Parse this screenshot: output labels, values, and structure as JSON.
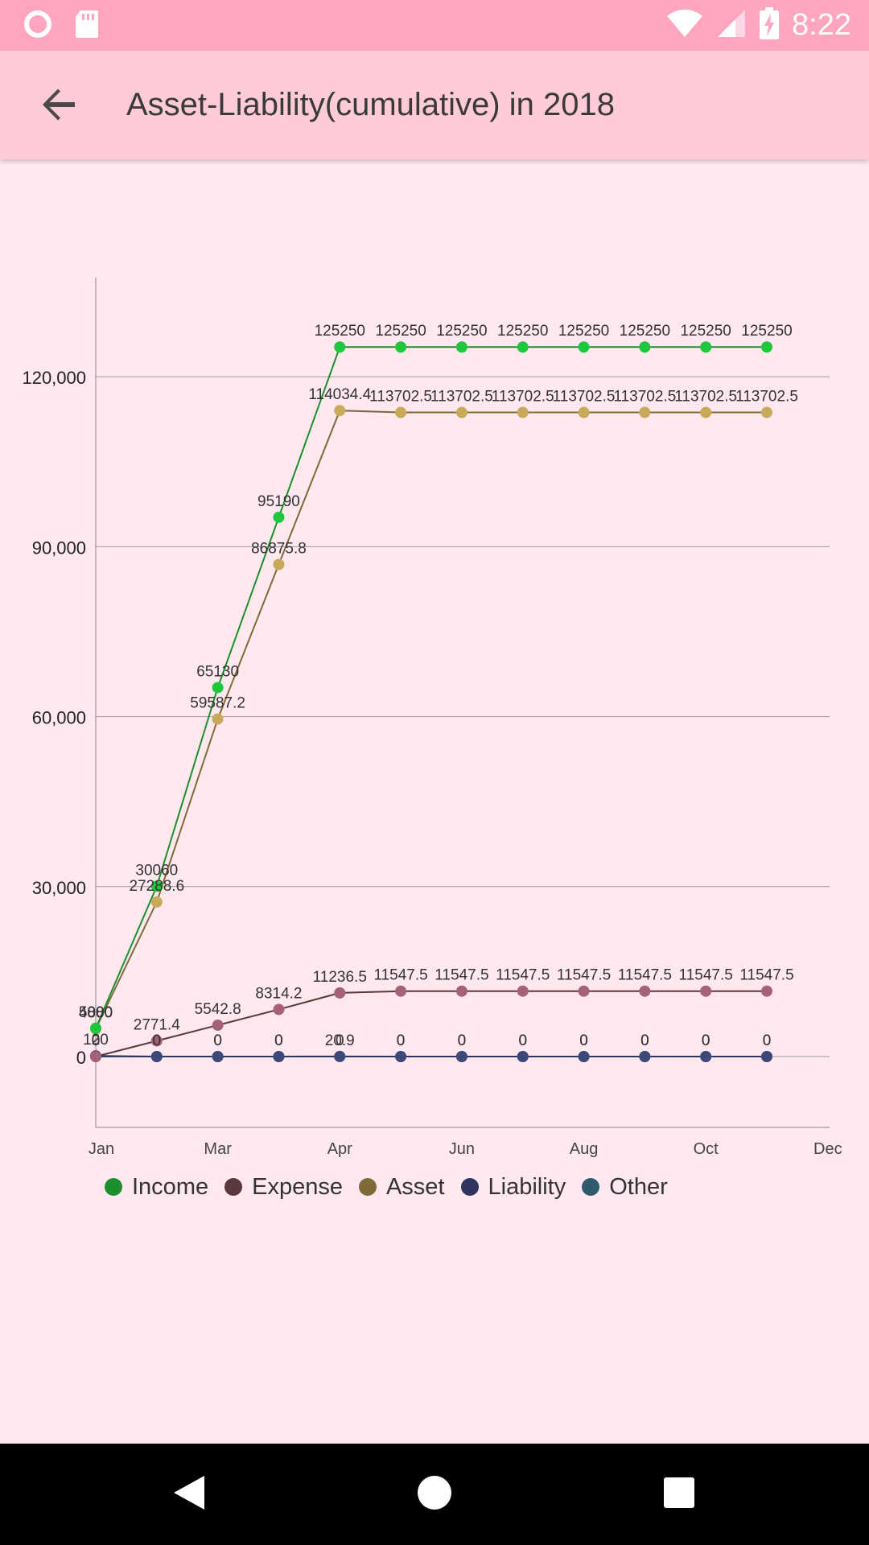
{
  "status_bar": {
    "time": "8:22",
    "icons": [
      "circle-notification-icon",
      "sd-card-icon",
      "wifi-icon",
      "signal-icon",
      "battery-charging-icon"
    ]
  },
  "app_bar": {
    "title": "Asset-Liability(cumulative) in 2018",
    "back_icon": "arrow-back-icon"
  },
  "chart_data": {
    "type": "line",
    "title": "",
    "xlabel": "",
    "ylabel": "",
    "x_range": [
      0,
      11
    ],
    "ylim": [
      -12500,
      137500
    ],
    "x_tick_positions": [
      0,
      2,
      4,
      6,
      8,
      10,
      12
    ],
    "x_tick_labels": [
      "Jan",
      "Mar",
      "Apr",
      "Jun",
      "Aug",
      "Oct",
      "Dec"
    ],
    "y_ticks": [
      0,
      30000,
      60000,
      90000,
      120000
    ],
    "y_tick_labels": [
      "0",
      "30,000",
      "60,000",
      "90,000",
      "120,000"
    ],
    "grid": "horizontal",
    "legend_position": "bottom-left",
    "series": [
      {
        "name": "Income",
        "color": "#1ec83c",
        "line_color": "#1b8f2e",
        "values": [
          5000,
          30060,
          65130,
          95190,
          125250,
          125250,
          125250,
          125250,
          125250,
          125250,
          125250,
          125250
        ],
        "labels": [
          "5000",
          "30060",
          "65130",
          "95190",
          "125250",
          "125250",
          "125250",
          "125250",
          "125250",
          "125250",
          "125250",
          "125250"
        ]
      },
      {
        "name": "Expense",
        "color": "#a5617a",
        "line_color": "#5a3840",
        "values": [
          0,
          2771.4,
          5542.8,
          8314.2,
          11236.5,
          11547.5,
          11547.5,
          11547.5,
          11547.5,
          11547.5,
          11547.5,
          11547.5
        ],
        "labels": [
          "0",
          "2771.4",
          "5542.8",
          "8314.2",
          "11236.5",
          "11547.5",
          "11547.5",
          "11547.5",
          "11547.5",
          "11547.5",
          "11547.5",
          "11547.5"
        ]
      },
      {
        "name": "Asset",
        "color": "#c8aa5a",
        "line_color": "#7e6a3a",
        "values": [
          4880,
          27288.6,
          59587.2,
          86875.8,
          114034.4,
          113702.5,
          113702.5,
          113702.5,
          113702.5,
          113702.5,
          113702.5,
          113702.5
        ],
        "labels": [
          "4880",
          "27288.6",
          "59587.2",
          "86875.8",
          "114034.4",
          "113702.5",
          "113702.5",
          "113702.5",
          "113702.5",
          "113702.5",
          "113702.5",
          "113702.5"
        ]
      },
      {
        "name": "Liability",
        "color": "#3c4878",
        "line_color": "#2e3560",
        "values": [
          120,
          0,
          0,
          0,
          20.9,
          0,
          0,
          0,
          0,
          0,
          0,
          0
        ],
        "labels": [
          "120",
          "0",
          "0",
          "0",
          "20.9",
          "0",
          "0",
          "0",
          "0",
          "0",
          "0",
          "0"
        ]
      },
      {
        "name": "Other",
        "color": "#3c8cb4",
        "line_color": "#2e5a6e",
        "values": [
          0,
          0,
          0,
          0,
          0,
          0,
          0,
          0,
          0,
          0,
          0,
          0
        ],
        "labels": [
          "0",
          "0",
          "0",
          "0",
          "0",
          "0",
          "0",
          "0",
          "0",
          "0",
          "0",
          "0"
        ]
      }
    ],
    "legend": [
      {
        "name": "Income",
        "color": "#1b8f2e"
      },
      {
        "name": "Expense",
        "color": "#5a3840"
      },
      {
        "name": "Asset",
        "color": "#7e6a3a"
      },
      {
        "name": "Liability",
        "color": "#2e3560"
      },
      {
        "name": "Other",
        "color": "#2e5a6e"
      }
    ]
  },
  "nav_bar": {
    "back_icon": "nav-back-triangle-icon",
    "home_icon": "nav-home-circle-icon",
    "recents_icon": "nav-recents-square-icon"
  }
}
